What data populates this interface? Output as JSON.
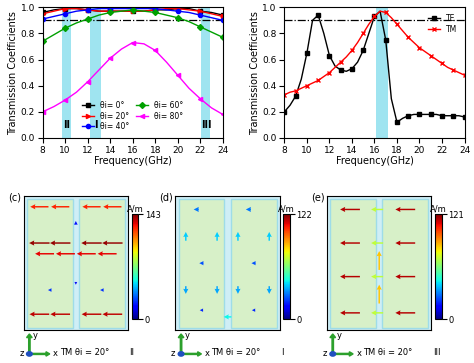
{
  "chart_data": [
    {
      "type": "line",
      "x_label": "Frequency(GHz)",
      "y_label": "Transmission Coefficients",
      "x": [
        8,
        9,
        10,
        11,
        12,
        13,
        14,
        15,
        16,
        17,
        18,
        19,
        20,
        21,
        22,
        23,
        24
      ],
      "xlim": [
        8,
        24
      ],
      "xticks": [
        8,
        10,
        12,
        14,
        16,
        18,
        20,
        22,
        24
      ],
      "ylim": [
        0.0,
        1.0
      ],
      "yticks": [
        {
          "value": 0.0,
          "label": "0.0"
        },
        0.2,
        0.4,
        0.6,
        0.8,
        {
          "value": 1.0,
          "label": "1.0"
        }
      ],
      "grid": false,
      "legend": "lower center",
      "reference_line": 0.9,
      "bands": [
        {
          "range": [
            9.7,
            10.5
          ],
          "label": "II"
        },
        {
          "range": [
            12.2,
            13.2
          ],
          "label": "I"
        },
        {
          "range": [
            22.1,
            22.9
          ],
          "label": "III"
        }
      ],
      "series": [
        {
          "name": "θi= 0°",
          "color": "#000000",
          "marker": "square",
          "values": [
            0.96,
            0.98,
            0.99,
            0.99,
            0.98,
            0.97,
            0.97,
            0.97,
            0.97,
            0.97,
            0.98,
            0.98,
            0.99,
            0.99,
            0.97,
            0.96,
            0.94
          ]
        },
        {
          "name": "θi= 20°",
          "color": "#ff0000",
          "marker": "triangle",
          "values": [
            0.95,
            0.97,
            0.99,
            0.99,
            0.98,
            0.97,
            0.97,
            0.97,
            0.97,
            0.97,
            0.98,
            0.99,
            0.99,
            0.98,
            0.97,
            0.95,
            0.93
          ]
        },
        {
          "name": "θi= 40°",
          "color": "#0000ff",
          "marker": "circle",
          "values": [
            0.91,
            0.93,
            0.95,
            0.97,
            0.98,
            0.99,
            0.99,
            0.99,
            0.99,
            0.99,
            0.99,
            0.98,
            0.97,
            0.96,
            0.94,
            0.92,
            0.9
          ]
        },
        {
          "name": "θi= 60°",
          "color": "#00a000",
          "marker": "diamond",
          "values": [
            0.74,
            0.79,
            0.84,
            0.88,
            0.91,
            0.94,
            0.96,
            0.97,
            0.98,
            0.97,
            0.96,
            0.94,
            0.92,
            0.89,
            0.85,
            0.81,
            0.77
          ]
        },
        {
          "name": "θi= 80°",
          "color": "#ff00ff",
          "marker": "triangle_left",
          "values": [
            0.2,
            0.24,
            0.29,
            0.35,
            0.43,
            0.52,
            0.61,
            0.68,
            0.73,
            0.72,
            0.67,
            0.58,
            0.48,
            0.38,
            0.3,
            0.23,
            0.18
          ]
        }
      ]
    },
    {
      "type": "line",
      "x_label": "Frequency(GHz)",
      "y_label": "Transmission Coefficients",
      "x": [
        8,
        8.5,
        9,
        9.5,
        10,
        10.5,
        11,
        11.5,
        12,
        12.5,
        13,
        13.5,
        14,
        14.5,
        15,
        15.5,
        16,
        16.5,
        17,
        17.5,
        18,
        18.5,
        19,
        19.5,
        20,
        20.5,
        21,
        21.5,
        22,
        22.5,
        23,
        23.5,
        24
      ],
      "xlim": [
        8,
        24
      ],
      "xticks": [
        8,
        10,
        12,
        14,
        16,
        18,
        20,
        22,
        24
      ],
      "ylim": [
        0.0,
        1.0
      ],
      "yticks": [
        {
          "value": 0.0,
          "label": "0.0"
        },
        0.2,
        0.4,
        0.6,
        0.8,
        {
          "value": 1.0,
          "label": "1.0"
        }
      ],
      "grid": false,
      "legend": "upper right",
      "reference_line": 0.9,
      "bands": [
        {
          "range": [
            16.1,
            17.2
          ]
        }
      ],
      "series": [
        {
          "name": "TE",
          "color": "#000000",
          "marker": "square",
          "values": [
            0.2,
            0.25,
            0.32,
            0.45,
            0.65,
            0.9,
            0.94,
            0.8,
            0.63,
            0.55,
            0.52,
            0.51,
            0.53,
            0.58,
            0.67,
            0.8,
            0.93,
            0.97,
            0.75,
            0.3,
            0.12,
            0.15,
            0.17,
            0.18,
            0.18,
            0.18,
            0.18,
            0.18,
            0.17,
            0.17,
            0.17,
            0.17,
            0.16
          ]
        },
        {
          "name": "TM",
          "color": "#ff0000",
          "marker": "x",
          "values": [
            0.33,
            0.35,
            0.36,
            0.38,
            0.4,
            0.42,
            0.44,
            0.47,
            0.5,
            0.54,
            0.58,
            0.62,
            0.67,
            0.73,
            0.8,
            0.87,
            0.93,
            0.97,
            0.96,
            0.92,
            0.87,
            0.82,
            0.77,
            0.73,
            0.69,
            0.66,
            0.63,
            0.6,
            0.57,
            0.54,
            0.52,
            0.5,
            0.48
          ]
        }
      ]
    },
    {
      "type": "vector_field",
      "panel": "(c)",
      "band": "II",
      "caption": "TM θi = 20°",
      "axis_names": [
        "x",
        "y",
        "z"
      ],
      "xlim": [
        0,
        1
      ],
      "ylim": [
        0,
        1
      ],
      "tick_labels": false,
      "colorbar": {
        "label": "A/m",
        "range": [
          0,
          143
        ],
        "ticks": [
          0,
          143
        ]
      },
      "arrows": [
        [
          0.15,
          0.92,
          -1,
          0,
          125
        ],
        [
          0.35,
          0.92,
          -1,
          0,
          125
        ],
        [
          0.65,
          0.92,
          -1,
          0,
          125
        ],
        [
          0.85,
          0.92,
          -1,
          0,
          125
        ],
        [
          0.15,
          0.65,
          -1,
          0,
          140
        ],
        [
          0.35,
          0.65,
          -1,
          0,
          140
        ],
        [
          0.65,
          0.65,
          -1,
          0,
          140
        ],
        [
          0.85,
          0.65,
          -1,
          0,
          140
        ],
        [
          0.2,
          0.57,
          -1,
          0,
          130
        ],
        [
          0.4,
          0.57,
          -1,
          0,
          130
        ],
        [
          0.6,
          0.57,
          -1,
          0,
          130
        ],
        [
          0.8,
          0.57,
          -1,
          0,
          130
        ],
        [
          0.15,
          0.12,
          -1,
          0,
          135
        ],
        [
          0.35,
          0.12,
          -1,
          0,
          135
        ],
        [
          0.65,
          0.12,
          -1,
          0,
          135
        ],
        [
          0.85,
          0.12,
          -1,
          0,
          135
        ],
        [
          0.5,
          0.8,
          0,
          1,
          20
        ],
        [
          0.5,
          0.35,
          0,
          -1,
          15
        ],
        [
          0.25,
          0.3,
          -1,
          0,
          25
        ],
        [
          0.75,
          0.3,
          -1,
          0,
          25
        ]
      ]
    },
    {
      "type": "vector_field",
      "panel": "(d)",
      "band": "I",
      "caption": "TM θi = 20°",
      "axis_names": [
        "x",
        "y",
        "z"
      ],
      "xlim": [
        0,
        1
      ],
      "ylim": [
        0,
        1
      ],
      "tick_labels": false,
      "colorbar": {
        "label": "A/m",
        "range": [
          0,
          122
        ],
        "ticks": [
          0,
          122
        ]
      },
      "arrows": [
        [
          0.2,
          0.9,
          -1,
          0,
          30
        ],
        [
          0.7,
          0.9,
          -1,
          0,
          30
        ],
        [
          0.1,
          0.7,
          0,
          1,
          40
        ],
        [
          0.4,
          0.7,
          0,
          1,
          40
        ],
        [
          0.6,
          0.7,
          0,
          1,
          40
        ],
        [
          0.9,
          0.7,
          0,
          1,
          40
        ],
        [
          0.25,
          0.5,
          -1,
          0,
          25
        ],
        [
          0.75,
          0.5,
          -1,
          0,
          25
        ],
        [
          0.1,
          0.3,
          0,
          -1,
          35
        ],
        [
          0.4,
          0.3,
          0,
          -1,
          35
        ],
        [
          0.6,
          0.3,
          0,
          -1,
          35
        ],
        [
          0.9,
          0.3,
          0,
          -1,
          35
        ],
        [
          0.5,
          0.1,
          -1,
          0,
          45
        ],
        [
          0.25,
          0.15,
          -1,
          0,
          20
        ],
        [
          0.75,
          0.15,
          -1,
          0,
          20
        ]
      ]
    },
    {
      "type": "vector_field",
      "panel": "(e)",
      "band": "III",
      "caption": "TM θi = 20°",
      "axis_names": [
        "x",
        "y",
        "z"
      ],
      "xlim": [
        0,
        1
      ],
      "ylim": [
        0,
        1
      ],
      "tick_labels": false,
      "colorbar": {
        "label": "A/m",
        "range": [
          0,
          121
        ],
        "ticks": [
          0,
          121
        ]
      },
      "arrows": [
        [
          0.22,
          0.9,
          -1,
          0,
          115
        ],
        [
          0.75,
          0.9,
          -1,
          0,
          115
        ],
        [
          0.22,
          0.65,
          -1,
          0,
          115
        ],
        [
          0.75,
          0.65,
          -1,
          0,
          115
        ],
        [
          0.22,
          0.4,
          -1,
          0,
          115
        ],
        [
          0.75,
          0.4,
          -1,
          0,
          115
        ],
        [
          0.22,
          0.13,
          -1,
          0,
          115
        ],
        [
          0.75,
          0.13,
          -1,
          0,
          115
        ],
        [
          0.48,
          0.9,
          -1,
          0,
          70
        ],
        [
          0.48,
          0.65,
          -1,
          0,
          70
        ],
        [
          0.48,
          0.4,
          -1,
          0,
          70
        ],
        [
          0.48,
          0.13,
          -1,
          0,
          70
        ],
        [
          0.5,
          0.52,
          0,
          1,
          85
        ],
        [
          0.5,
          0.27,
          0,
          1,
          85
        ]
      ]
    }
  ]
}
